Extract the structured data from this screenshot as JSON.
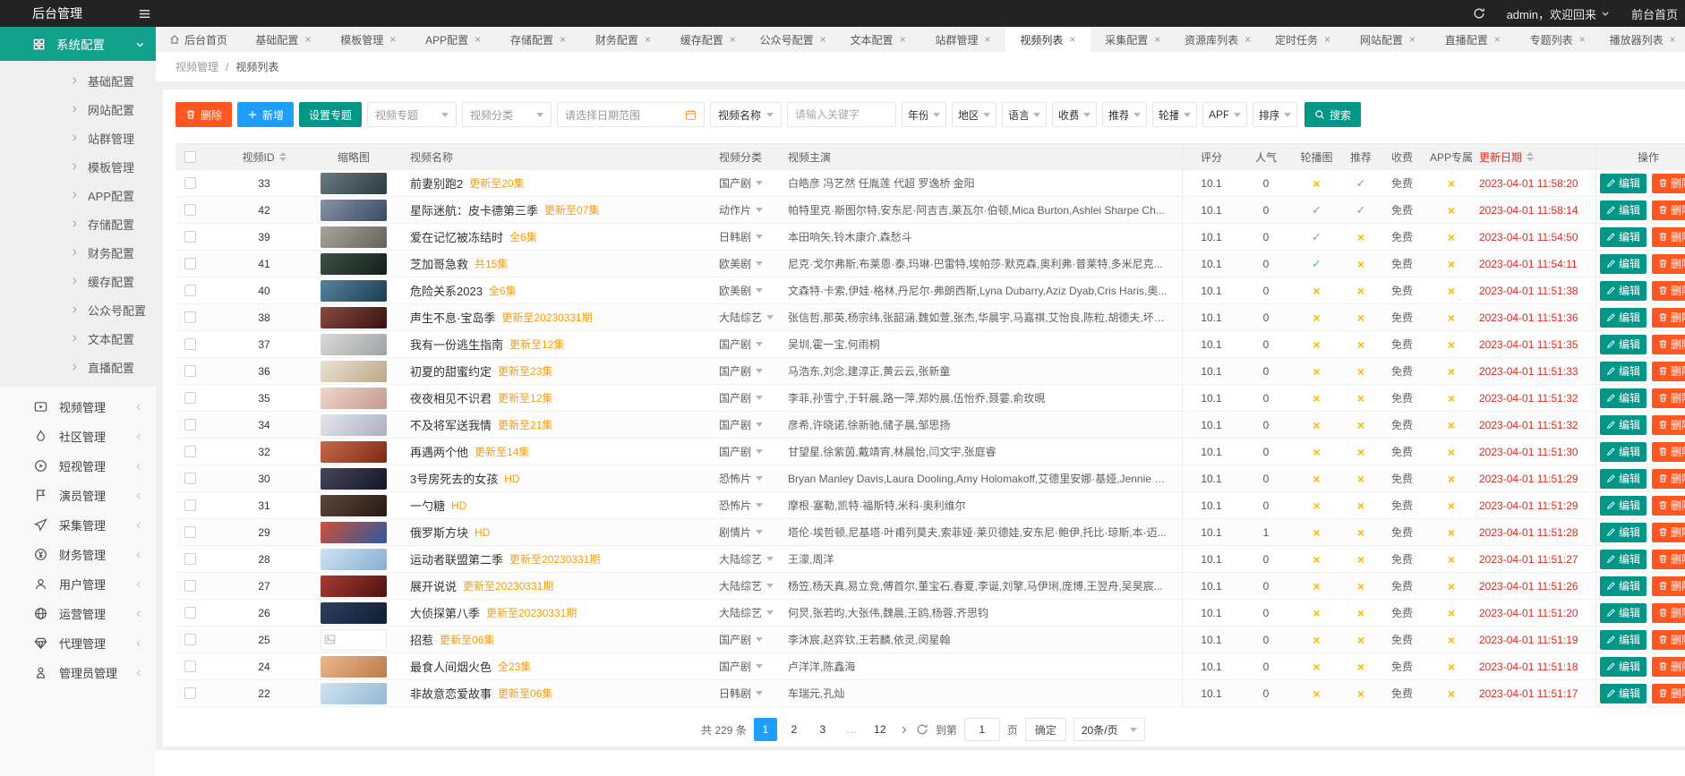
{
  "colors": {
    "topbar_black": "#232323",
    "sidebar_teal": "#10A08C",
    "teal_primary": "#009688",
    "blue_primary": "#1E9FFF",
    "danger_orange": "#FF5722",
    "tag_orange": "#FF9C00",
    "cross_orange": "#FFB800",
    "check_green": "#5FB878",
    "date_red": "#DD2B20",
    "active_page_blue": "#1E9FFF"
  },
  "topbar": {
    "title": "后台管理",
    "user": "admin，欢迎回来",
    "front_link": "前台首页"
  },
  "sidebar": {
    "header": {
      "label": "系统配置",
      "icon": "grid-icon"
    },
    "sub_items": [
      "基础配置",
      "网站配置",
      "站群管理",
      "模板管理",
      "APP配置",
      "存储配置",
      "财务配置",
      "缓存配置",
      "公众号配置",
      "文本配置",
      "直播配置"
    ],
    "items": [
      {
        "label": "视频管理",
        "icon": "video-icon"
      },
      {
        "label": "社区管理",
        "icon": "fire-icon"
      },
      {
        "label": "短视管理",
        "icon": "play-circle-icon"
      },
      {
        "label": "演员管理",
        "icon": "flag-icon"
      },
      {
        "label": "采集管理",
        "icon": "send-icon"
      },
      {
        "label": "财务管理",
        "icon": "yen-icon"
      },
      {
        "label": "用户管理",
        "icon": "user-icon"
      },
      {
        "label": "运营管理",
        "icon": "globe-icon"
      },
      {
        "label": "代理管理",
        "icon": "diamond-icon"
      },
      {
        "label": "管理员管理",
        "icon": "admin-icon"
      }
    ]
  },
  "tabs": [
    {
      "label": "后台首页",
      "icon": "home-icon",
      "closable": false
    },
    {
      "label": "基础配置"
    },
    {
      "label": "模板管理"
    },
    {
      "label": "APP配置"
    },
    {
      "label": "存储配置"
    },
    {
      "label": "财务配置"
    },
    {
      "label": "缓存配置"
    },
    {
      "label": "公众号配置"
    },
    {
      "label": "文本配置"
    },
    {
      "label": "站群管理"
    },
    {
      "label": "视频列表",
      "active": true
    },
    {
      "label": "采集配置"
    },
    {
      "label": "资源库列表"
    },
    {
      "label": "定时任务"
    },
    {
      "label": "网站配置"
    },
    {
      "label": "直播配置"
    },
    {
      "label": "专题列表"
    },
    {
      "label": "播放器列表"
    }
  ],
  "breadcrumb": {
    "parent": "视频管理",
    "separator": "/",
    "current": "视频列表"
  },
  "toolbar": {
    "delete_label": "删除",
    "add_label": "新增",
    "topic_label": "设置专题",
    "topic_select": "视频专题",
    "category_select": "视频分类",
    "date_placeholder": "请选择日期范围",
    "field_select": "视频名称",
    "keyword_placeholder": "请输入关键字",
    "filters": [
      "年份",
      "地区",
      "语言",
      "收费",
      "推荐",
      "轮播",
      "APP",
      "排序"
    ],
    "search_label": "搜索"
  },
  "table": {
    "headers": [
      "视频ID",
      "缩略图",
      "视频名称",
      "视频分类",
      "视频主演",
      "评分",
      "人气",
      "轮播图",
      "推荐",
      "收费",
      "APP专属",
      "更新日期",
      "操作"
    ],
    "ops": {
      "edit": "编辑",
      "delete": "删除"
    },
    "rows": [
      {
        "id": "33",
        "name": "前妻别跑2",
        "tag": "更新至20集",
        "category": "国产剧",
        "cast": "白皓彦 冯艺然 任胤莲 代超 罗逸桥 金阳",
        "score": "10.1",
        "pop": "0",
        "carousel": false,
        "recommend": true,
        "fee": "免费",
        "app": false,
        "date": "2023-04-01 11:58:20",
        "thumb": [
          "#6b7a82",
          "#2c3a41"
        ]
      },
      {
        "id": "42",
        "name": "星际迷航：皮卡德第三季",
        "tag": "更新至07集",
        "category": "动作片",
        "cast": "帕特里克·斯图尔特,安东尼·阿吉吉,莱瓦尔·伯顿,Mica Burton,Ashlei Sharpe Ch...",
        "score": "10.1",
        "pop": "0",
        "carousel": true,
        "recommend": true,
        "fee": "免费",
        "app": false,
        "date": "2023-04-01 11:58:14",
        "thumb": [
          "#8793a5",
          "#394a66"
        ]
      },
      {
        "id": "39",
        "name": "爱在记忆被冻结时",
        "tag": "全6集",
        "category": "日韩剧",
        "cast": "本田响矢,铃木康介,森愁斗",
        "score": "10.1",
        "pop": "0",
        "carousel": true,
        "recommend": false,
        "fee": "免费",
        "app": false,
        "date": "2023-04-01 11:54:50",
        "thumb": [
          "#a8a69c",
          "#63625a"
        ]
      },
      {
        "id": "41",
        "name": "芝加哥急救",
        "tag": "共15集",
        "category": "欧美剧",
        "cast": "尼克·戈尔弗斯,布莱恩·泰,玛琳·巴雷特,埃帕莎·默克森,奥利弗·普莱特,多米尼克...",
        "score": "10.1",
        "pop": "0",
        "carousel": true,
        "recommend": false,
        "fee": "免费",
        "app": false,
        "date": "2023-04-01 11:54:11",
        "thumb": [
          "#3c5246",
          "#141f1a"
        ]
      },
      {
        "id": "40",
        "name": "危险关系2023",
        "tag": "全6集",
        "category": "欧美剧",
        "cast": "文森特·卡索,伊娃·格林,丹尼尔·弗朗西斯,Lyna Dubarry,Aziz Dyab,Cris Haris,奥...",
        "score": "10.1",
        "pop": "0",
        "carousel": false,
        "recommend": false,
        "fee": "免费",
        "app": false,
        "date": "2023-04-01 11:51:38",
        "thumb": [
          "#5584a0",
          "#1d3c4e"
        ]
      },
      {
        "id": "38",
        "name": "声生不息·宝岛季",
        "tag": "更新至20230331期",
        "category": "大陆综艺",
        "cast": "张信哲,那英,杨宗纬,张韶涵,魏如萱,张杰,华晨宇,马嘉祺,艾怡良,陈粒,胡德夫,坏特...",
        "score": "10.1",
        "pop": "0",
        "carousel": false,
        "recommend": false,
        "fee": "免费",
        "app": false,
        "date": "2023-04-01 11:51:36",
        "thumb": [
          "#8a4a42",
          "#38120e"
        ]
      },
      {
        "id": "37",
        "name": "我有一份逃生指南",
        "tag": "更新至12集",
        "category": "国产剧",
        "cast": "吴圳,霍一宝,何雨桐",
        "score": "10.1",
        "pop": "0",
        "carousel": false,
        "recommend": false,
        "fee": "免费",
        "app": false,
        "date": "2023-04-01 11:51:35",
        "thumb": [
          "#d9d9d9",
          "#9fa3a6"
        ]
      },
      {
        "id": "36",
        "name": "初夏的甜蜜约定",
        "tag": "更新至23集",
        "category": "国产剧",
        "cast": "马浩东,刘念,建淳正,黄云云,张新童",
        "score": "10.1",
        "pop": "0",
        "carousel": false,
        "recommend": false,
        "fee": "免费",
        "app": false,
        "date": "2023-04-01 11:51:33",
        "thumb": [
          "#e9e2d2",
          "#bba887"
        ]
      },
      {
        "id": "35",
        "name": "夜夜相见不识君",
        "tag": "更新至12集",
        "category": "国产剧",
        "cast": "李菲,孙雪宁,于轩晨,路一萍,郑妁晨,伍怡乔,聂霎,俞玫晛",
        "score": "10.1",
        "pop": "0",
        "carousel": false,
        "recommend": false,
        "fee": "免费",
        "app": false,
        "date": "2023-04-01 11:51:32",
        "thumb": [
          "#eed6cb",
          "#c49a8d"
        ]
      },
      {
        "id": "34",
        "name": "不及将军送我情",
        "tag": "更新至21集",
        "category": "国产剧",
        "cast": "彦希,许晓诺,徐新驰,储子晨,邹思扬",
        "score": "10.1",
        "pop": "0",
        "carousel": false,
        "recommend": false,
        "fee": "免费",
        "app": false,
        "date": "2023-04-01 11:51:32",
        "thumb": [
          "#e6e6ec",
          "#adaec0"
        ]
      },
      {
        "id": "32",
        "name": "再遇两个他",
        "tag": "更新至14集",
        "category": "国产剧",
        "cast": "甘望星,徐紫茵,戴靖宵,林晨怡,闫文宇,张庭睿",
        "score": "10.1",
        "pop": "0",
        "carousel": false,
        "recommend": false,
        "fee": "免费",
        "app": false,
        "date": "2023-04-01 11:51:30",
        "thumb": [
          "#c66a48",
          "#7c2a16"
        ]
      },
      {
        "id": "30",
        "name": "3号房死去的女孩",
        "tag": "HD",
        "category": "恐怖片",
        "cast": "Bryan Manley Davis,Laura Dooling,Amy Holomakoff,艾德里安娜·基娅,Jennie Ost...",
        "score": "10.1",
        "pop": "0",
        "carousel": false,
        "recommend": false,
        "fee": "免费",
        "app": false,
        "date": "2023-04-01 11:51:29",
        "thumb": [
          "#45455c",
          "#15152a"
        ]
      },
      {
        "id": "31",
        "name": "一勺糖",
        "tag": "HD",
        "category": "恐怖片",
        "cast": "摩根·塞勒,凯特·福斯特,米科·奥利维尔",
        "score": "10.1",
        "pop": "0",
        "carousel": false,
        "recommend": false,
        "fee": "免费",
        "app": false,
        "date": "2023-04-01 11:51:29",
        "thumb": [
          "#5e463c",
          "#271912"
        ]
      },
      {
        "id": "29",
        "name": "俄罗斯方块",
        "tag": "HD",
        "category": "剧情片",
        "cast": "塔伦·埃哲顿,尼基塔·叶甫列莫夫,索菲娅·莱贝德娃,安东尼·鲍伊,托比·琼斯,本·迈...",
        "score": "10.1",
        "pop": "1",
        "carousel": false,
        "recommend": false,
        "fee": "免费",
        "app": false,
        "date": "2023-04-01 11:51:28",
        "thumb": [
          "#d05038",
          "#2b5a9e"
        ]
      },
      {
        "id": "28",
        "name": "运动者联盟第二季",
        "tag": "更新至20230331期",
        "category": "大陆综艺",
        "cast": "王濛,周洋",
        "score": "10.1",
        "pop": "0",
        "carousel": false,
        "recommend": false,
        "fee": "免费",
        "app": false,
        "date": "2023-04-01 11:51:27",
        "thumb": [
          "#cfe3f2",
          "#86aed0"
        ]
      },
      {
        "id": "27",
        "name": "展开说说",
        "tag": "更新至20230331期",
        "category": "大陆综艺",
        "cast": "杨笠,杨天真,易立竞,傅首尔,董宝石,春夏,李诞,刘擎,马伊琍,庞博,王翌舟,吴昊宸...",
        "score": "10.1",
        "pop": "0",
        "carousel": false,
        "recommend": false,
        "fee": "免费",
        "app": false,
        "date": "2023-04-01 11:51:26",
        "thumb": [
          "#a83c30",
          "#4e1210"
        ]
      },
      {
        "id": "26",
        "name": "大侦探第八季",
        "tag": "更新至20230331期",
        "category": "大陆综艺",
        "cast": "何炅,张若昀,大张伟,魏晨,王鸥,杨蓉,齐思钧",
        "score": "10.1",
        "pop": "0",
        "carousel": false,
        "recommend": false,
        "fee": "免费",
        "app": false,
        "date": "2023-04-01 11:51:20",
        "thumb": [
          "#2e4060",
          "#101e33"
        ]
      },
      {
        "id": "25",
        "name": "招惹",
        "tag": "更新至06集",
        "category": "国产剧",
        "cast": "李沐宸,赵弈钦,王若麟,依灵,闵星翰",
        "score": "10.1",
        "pop": "0",
        "carousel": false,
        "recommend": false,
        "fee": "免费",
        "app": false,
        "date": "2023-04-01 11:51:19",
        "thumb_broken": true
      },
      {
        "id": "24",
        "name": "最食人间烟火色",
        "tag": "全23集",
        "category": "国产剧",
        "cast": "卢洋洋,陈鑫海",
        "score": "10.1",
        "pop": "0",
        "carousel": false,
        "recommend": false,
        "fee": "免费",
        "app": false,
        "date": "2023-04-01 11:51:18",
        "thumb": [
          "#eab78e",
          "#bf7a4a"
        ]
      },
      {
        "id": "22",
        "name": "非故意恋爱故事",
        "tag": "更新至06集",
        "category": "日韩剧",
        "cast": "车瑞元,孔灿",
        "score": "10.1",
        "pop": "0",
        "carousel": false,
        "recommend": false,
        "fee": "免费",
        "app": false,
        "date": "2023-04-01 11:51:17",
        "thumb": [
          "#cfe2f0",
          "#93b9d8"
        ]
      }
    ]
  },
  "pagination": {
    "total": "共 229 条",
    "pages": [
      "1",
      "2",
      "3",
      "...",
      "12"
    ],
    "active": "1",
    "goto_label": "到第",
    "goto_value": "1",
    "page_label": "页",
    "confirm_label": "确定",
    "page_size": "20条/页"
  }
}
